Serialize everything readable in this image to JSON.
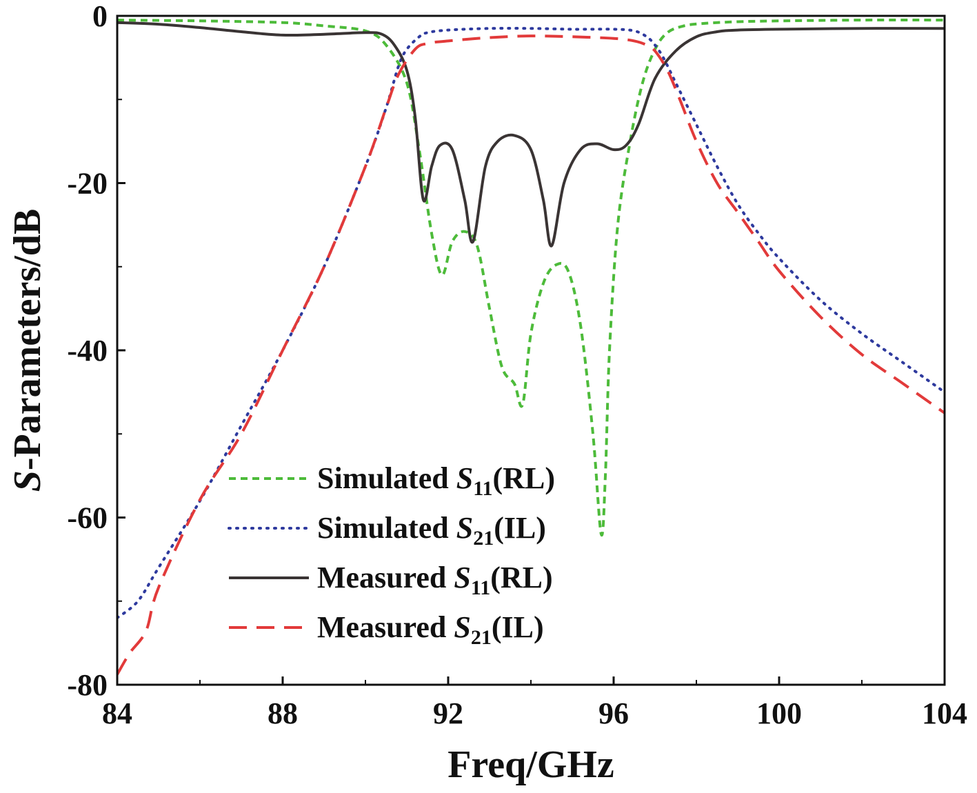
{
  "chart_data": {
    "type": "line",
    "title": "",
    "xlabel": "Freq/GHz",
    "ylabel": "S-Parameters/dB",
    "ylabel_italic_prefix": "S",
    "ylabel_rest": "-Parameters/dB",
    "xlim": [
      84,
      104
    ],
    "ylim": [
      -80,
      0
    ],
    "xticks": [
      84,
      88,
      92,
      96,
      100,
      104
    ],
    "xtick_labels": [
      "84",
      "88",
      "92",
      "96",
      "100",
      "104"
    ],
    "yticks": [
      0,
      -20,
      -40,
      -60,
      -80
    ],
    "ytick_labels": [
      "0",
      "-20",
      "-40",
      "-60",
      "-80"
    ],
    "grid": false,
    "legend_position": "lower-left-center",
    "series": [
      {
        "name": "Simulated S11(RL)",
        "legend": {
          "prefix": "Simulated ",
          "sym": "S",
          "sub": "11",
          "suffix": "(RL)"
        },
        "color": "#4dbb3a",
        "style": "short-dash",
        "x": [
          84,
          86,
          88,
          89,
          90,
          90.5,
          91,
          91.3,
          91.6,
          91.85,
          92.1,
          92.4,
          92.7,
          93,
          93.3,
          93.6,
          93.8,
          94,
          94.3,
          94.6,
          94.9,
          95.2,
          95.5,
          95.7,
          95.8,
          95.9,
          96.1,
          96.4,
          96.7,
          97,
          97.3,
          97.7,
          98.2,
          99,
          100,
          102,
          104
        ],
        "y": [
          -0.5,
          -0.6,
          -0.8,
          -1.2,
          -1.8,
          -3.5,
          -8,
          -16,
          -26,
          -31,
          -27,
          -25.8,
          -27.5,
          -35,
          -42,
          -44,
          -46.5,
          -38,
          -32,
          -29.8,
          -30.5,
          -37,
          -50,
          -62,
          -55,
          -40,
          -25,
          -15,
          -8,
          -4,
          -2,
          -1.2,
          -0.9,
          -0.7,
          -0.6,
          -0.5,
          -0.5
        ]
      },
      {
        "name": "Simulated S21(IL)",
        "legend": {
          "prefix": "Simulated ",
          "sym": "S",
          "sub": "21",
          "suffix": "(IL)"
        },
        "color": "#2e3a9e",
        "style": "dot",
        "x": [
          84,
          84.5,
          85,
          86,
          87,
          88,
          89,
          90,
          90.5,
          90.8,
          91,
          91.3,
          91.5,
          92,
          93,
          94,
          95,
          96,
          96.5,
          96.8,
          97,
          97.2,
          97.5,
          98,
          98.5,
          99,
          99.5,
          100,
          101,
          102,
          103,
          104
        ],
        "y": [
          -72,
          -70,
          -66,
          -58,
          -49,
          -40,
          -30,
          -18,
          -11,
          -6,
          -4,
          -2.5,
          -2,
          -1.7,
          -1.5,
          -1.5,
          -1.6,
          -1.6,
          -1.8,
          -2.5,
          -3.5,
          -5,
          -8,
          -13,
          -18,
          -22.5,
          -26,
          -29,
          -34,
          -38,
          -41.5,
          -45
        ]
      },
      {
        "name": "Measured S11(RL)",
        "legend": {
          "prefix": "Measured ",
          "sym": "S",
          "sub": "11",
          "suffix": "(RL)"
        },
        "color": "#3a3434",
        "style": "solid",
        "x": [
          84,
          85,
          86,
          87,
          88,
          89,
          90,
          90.4,
          90.7,
          91,
          91.2,
          91.4,
          91.6,
          91.8,
          92.1,
          92.4,
          92.6,
          92.9,
          93.2,
          93.6,
          94,
          94.3,
          94.5,
          94.8,
          95.2,
          95.6,
          96,
          96.3,
          96.6,
          97,
          97.5,
          98,
          98.5,
          99,
          100,
          102,
          104
        ],
        "y": [
          -0.8,
          -1.0,
          -1.4,
          -1.9,
          -2.3,
          -2.2,
          -2.0,
          -2.2,
          -3.5,
          -6.5,
          -12,
          -22,
          -18,
          -15.5,
          -16,
          -22,
          -27,
          -18,
          -15,
          -14.3,
          -16,
          -22,
          -27.5,
          -20,
          -16,
          -15.3,
          -16,
          -15.5,
          -13,
          -7.5,
          -4.2,
          -2.5,
          -1.9,
          -1.7,
          -1.6,
          -1.5,
          -1.5
        ]
      },
      {
        "name": "Measured S21(IL)",
        "legend": {
          "prefix": "Measured ",
          "sym": "S",
          "sub": "21",
          "suffix": "(IL)"
        },
        "color": "#e23a3a",
        "style": "long-dash",
        "noisy_until": 87,
        "x": [
          84,
          84.3,
          84.7,
          85,
          86,
          87,
          88,
          89,
          90,
          90.5,
          90.8,
          91.2,
          91.5,
          92,
          93,
          94,
          95,
          96,
          96.5,
          96.8,
          97,
          97.3,
          97.6,
          98,
          98.5,
          99,
          99.5,
          100,
          101,
          102,
          103,
          104
        ],
        "y": [
          -79,
          -75,
          -72,
          -68,
          -59,
          -50,
          -40,
          -30,
          -18,
          -11,
          -7,
          -4,
          -3.3,
          -3,
          -2.6,
          -2.4,
          -2.5,
          -2.7,
          -3,
          -3.5,
          -4.2,
          -6.5,
          -10,
          -15,
          -20,
          -23.5,
          -27,
          -30.5,
          -36,
          -40.5,
          -44,
          -47.5
        ]
      }
    ]
  }
}
